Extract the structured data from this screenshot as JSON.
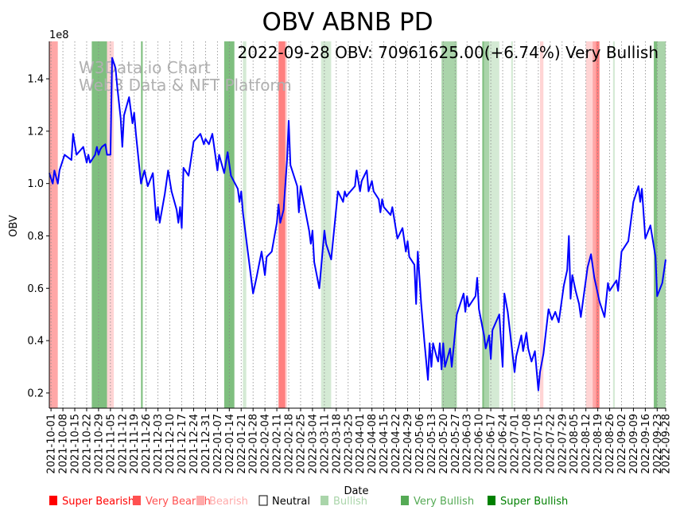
{
  "chart_data": {
    "type": "line",
    "title": "OBV ABNB PD",
    "annotation": "2022-09-28 OBV: 70961625.00(+6.74%) Very Bullish",
    "watermark": [
      "W3Data.io Chart",
      "Web3 Data & NFT Platform"
    ],
    "xlabel": "Date",
    "ylabel": "OBV",
    "y_offset_label": "1e8",
    "y_scale": 100000000,
    "ylim": [
      0.142,
      1.543
    ],
    "xlim": [
      "2021-09-30",
      "2022-09-28"
    ],
    "grid": "x-dotted",
    "yticks": [
      {
        "value": 0.2,
        "label": "0.2"
      },
      {
        "value": 0.4,
        "label": "0.4"
      },
      {
        "value": 0.6,
        "label": "0.6"
      },
      {
        "value": 0.8,
        "label": "0.8"
      },
      {
        "value": 1.0,
        "label": "1.0"
      },
      {
        "value": 1.2,
        "label": "1.2"
      },
      {
        "value": 1.4,
        "label": "1.4"
      }
    ],
    "xticks": [
      "2021-10-01",
      "2021-10-08",
      "2021-10-15",
      "2021-10-22",
      "2021-10-29",
      "2021-11-05",
      "2021-11-12",
      "2021-11-19",
      "2021-11-26",
      "2021-12-03",
      "2021-12-10",
      "2021-12-17",
      "2021-12-24",
      "2021-12-31",
      "2022-01-07",
      "2022-01-14",
      "2022-01-21",
      "2022-01-28",
      "2022-02-04",
      "2022-02-11",
      "2022-02-18",
      "2022-02-25",
      "2022-03-04",
      "2022-03-11",
      "2022-03-18",
      "2022-03-25",
      "2022-04-01",
      "2022-04-08",
      "2022-04-15",
      "2022-04-22",
      "2022-04-29",
      "2022-05-06",
      "2022-05-13",
      "2022-05-20",
      "2022-05-27",
      "2022-06-03",
      "2022-06-10",
      "2022-06-17",
      "2022-06-24",
      "2022-07-01",
      "2022-07-08",
      "2022-07-15",
      "2022-07-22",
      "2022-07-29",
      "2022-08-05",
      "2022-08-12",
      "2022-08-19",
      "2022-08-26",
      "2022-09-02",
      "2022-09-09",
      "2022-09-16",
      "2022-09-23",
      "2022-09-28"
    ],
    "series": [
      {
        "name": "OBV",
        "color": "#0000ff",
        "points": [
          [
            "2021-09-30",
            1.04
          ],
          [
            "2021-10-02",
            1.0
          ],
          [
            "2021-10-03",
            1.05
          ],
          [
            "2021-10-05",
            1.0
          ],
          [
            "2021-10-06",
            1.05
          ],
          [
            "2021-10-09",
            1.11
          ],
          [
            "2021-10-13",
            1.09
          ],
          [
            "2021-10-14",
            1.19
          ],
          [
            "2021-10-16",
            1.11
          ],
          [
            "2021-10-20",
            1.14
          ],
          [
            "2021-10-22",
            1.08
          ],
          [
            "2021-10-23",
            1.11
          ],
          [
            "2021-10-24",
            1.08
          ],
          [
            "2021-10-27",
            1.11
          ],
          [
            "2021-10-28",
            1.14
          ],
          [
            "2021-10-29",
            1.11
          ],
          [
            "2021-10-30",
            1.13
          ],
          [
            "2021-10-31",
            1.14
          ],
          [
            "2021-11-02",
            1.15
          ],
          [
            "2021-11-03",
            1.11
          ],
          [
            "2021-11-05",
            1.11
          ],
          [
            "2021-11-06",
            1.48
          ],
          [
            "2021-11-08",
            1.44
          ],
          [
            "2021-11-09",
            1.37
          ],
          [
            "2021-11-11",
            1.25
          ],
          [
            "2021-11-12",
            1.14
          ],
          [
            "2021-11-13",
            1.26
          ],
          [
            "2021-11-16",
            1.33
          ],
          [
            "2021-11-18",
            1.23
          ],
          [
            "2021-11-19",
            1.27
          ],
          [
            "2021-11-20",
            1.19
          ],
          [
            "2021-11-23",
            1.0
          ],
          [
            "2021-11-25",
            1.05
          ],
          [
            "2021-11-27",
            0.99
          ],
          [
            "2021-11-30",
            1.04
          ],
          [
            "2021-12-02",
            0.86
          ],
          [
            "2021-12-03",
            0.91
          ],
          [
            "2021-12-04",
            0.85
          ],
          [
            "2021-12-07",
            0.96
          ],
          [
            "2021-12-09",
            1.05
          ],
          [
            "2021-12-11",
            0.97
          ],
          [
            "2021-12-14",
            0.9
          ],
          [
            "2021-12-15",
            0.85
          ],
          [
            "2021-12-16",
            0.91
          ],
          [
            "2021-12-17",
            0.83
          ],
          [
            "2021-12-18",
            1.06
          ],
          [
            "2021-12-21",
            1.03
          ],
          [
            "2021-12-24",
            1.16
          ],
          [
            "2021-12-28",
            1.19
          ],
          [
            "2021-12-30",
            1.15
          ],
          [
            "2021-12-31",
            1.17
          ],
          [
            "2022-01-02",
            1.15
          ],
          [
            "2022-01-04",
            1.19
          ],
          [
            "2022-01-07",
            1.05
          ],
          [
            "2022-01-08",
            1.11
          ],
          [
            "2022-01-11",
            1.04
          ],
          [
            "2022-01-13",
            1.12
          ],
          [
            "2022-01-15",
            1.03
          ],
          [
            "2022-01-19",
            0.98
          ],
          [
            "2022-01-20",
            0.93
          ],
          [
            "2022-01-21",
            0.97
          ],
          [
            "2022-01-22",
            0.89
          ],
          [
            "2022-01-28",
            0.58
          ],
          [
            "2022-01-30",
            0.64
          ],
          [
            "2022-02-02",
            0.74
          ],
          [
            "2022-02-04",
            0.65
          ],
          [
            "2022-02-05",
            0.72
          ],
          [
            "2022-02-08",
            0.74
          ],
          [
            "2022-02-11",
            0.85
          ],
          [
            "2022-02-12",
            0.92
          ],
          [
            "2022-02-13",
            0.85
          ],
          [
            "2022-02-15",
            0.9
          ],
          [
            "2022-02-17",
            1.09
          ],
          [
            "2022-02-18",
            1.24
          ],
          [
            "2022-02-19",
            1.07
          ],
          [
            "2022-02-23",
            0.99
          ],
          [
            "2022-02-24",
            0.89
          ],
          [
            "2022-02-25",
            0.99
          ],
          [
            "2022-03-02",
            0.82
          ],
          [
            "2022-03-03",
            0.77
          ],
          [
            "2022-03-04",
            0.82
          ],
          [
            "2022-03-05",
            0.7
          ],
          [
            "2022-03-08",
            0.6
          ],
          [
            "2022-03-11",
            0.82
          ],
          [
            "2022-03-12",
            0.77
          ],
          [
            "2022-03-15",
            0.71
          ],
          [
            "2022-03-19",
            0.97
          ],
          [
            "2022-03-22",
            0.93
          ],
          [
            "2022-03-23",
            0.97
          ],
          [
            "2022-03-24",
            0.95
          ],
          [
            "2022-03-25",
            0.96
          ],
          [
            "2022-03-29",
            0.99
          ],
          [
            "2022-03-30",
            1.05
          ],
          [
            "2022-04-01",
            0.97
          ],
          [
            "2022-04-02",
            1.01
          ],
          [
            "2022-04-05",
            1.05
          ],
          [
            "2022-04-06",
            0.97
          ],
          [
            "2022-04-08",
            1.01
          ],
          [
            "2022-04-09",
            0.97
          ],
          [
            "2022-04-12",
            0.94
          ],
          [
            "2022-04-13",
            0.89
          ],
          [
            "2022-04-14",
            0.94
          ],
          [
            "2022-04-15",
            0.91
          ],
          [
            "2022-04-19",
            0.88
          ],
          [
            "2022-04-20",
            0.91
          ],
          [
            "2022-04-23",
            0.79
          ],
          [
            "2022-04-26",
            0.83
          ],
          [
            "2022-04-28",
            0.74
          ],
          [
            "2022-04-29",
            0.78
          ],
          [
            "2022-04-30",
            0.72
          ],
          [
            "2022-05-03",
            0.69
          ],
          [
            "2022-05-04",
            0.54
          ],
          [
            "2022-05-05",
            0.74
          ],
          [
            "2022-05-07",
            0.54
          ],
          [
            "2022-05-09",
            0.39
          ],
          [
            "2022-05-11",
            0.25
          ],
          [
            "2022-05-12",
            0.39
          ],
          [
            "2022-05-13",
            0.3
          ],
          [
            "2022-05-14",
            0.39
          ],
          [
            "2022-05-16",
            0.34
          ],
          [
            "2022-05-17",
            0.32
          ],
          [
            "2022-05-18",
            0.39
          ],
          [
            "2022-05-19",
            0.29
          ],
          [
            "2022-05-20",
            0.39
          ],
          [
            "2022-05-21",
            0.3
          ],
          [
            "2022-05-24",
            0.37
          ],
          [
            "2022-05-25",
            0.3
          ],
          [
            "2022-05-28",
            0.5
          ],
          [
            "2022-06-01",
            0.58
          ],
          [
            "2022-06-02",
            0.51
          ],
          [
            "2022-06-03",
            0.57
          ],
          [
            "2022-06-04",
            0.53
          ],
          [
            "2022-06-08",
            0.57
          ],
          [
            "2022-06-09",
            0.64
          ],
          [
            "2022-06-10",
            0.52
          ],
          [
            "2022-06-13",
            0.42
          ],
          [
            "2022-06-14",
            0.37
          ],
          [
            "2022-06-16",
            0.42
          ],
          [
            "2022-06-17",
            0.33
          ],
          [
            "2022-06-18",
            0.44
          ],
          [
            "2022-06-22",
            0.5
          ],
          [
            "2022-06-24",
            0.3
          ],
          [
            "2022-06-25",
            0.58
          ],
          [
            "2022-06-27",
            0.51
          ],
          [
            "2022-07-01",
            0.28
          ],
          [
            "2022-07-02",
            0.34
          ],
          [
            "2022-07-05",
            0.42
          ],
          [
            "2022-07-06",
            0.36
          ],
          [
            "2022-07-08",
            0.43
          ],
          [
            "2022-07-09",
            0.37
          ],
          [
            "2022-07-11",
            0.32
          ],
          [
            "2022-07-13",
            0.36
          ],
          [
            "2022-07-15",
            0.21
          ],
          [
            "2022-07-16",
            0.28
          ],
          [
            "2022-07-18",
            0.35
          ],
          [
            "2022-07-21",
            0.52
          ],
          [
            "2022-07-23",
            0.48
          ],
          [
            "2022-07-25",
            0.51
          ],
          [
            "2022-07-27",
            0.47
          ],
          [
            "2022-07-30",
            0.61
          ],
          [
            "2022-08-01",
            0.67
          ],
          [
            "2022-08-02",
            0.8
          ],
          [
            "2022-08-03",
            0.56
          ],
          [
            "2022-08-04",
            0.65
          ],
          [
            "2022-08-06",
            0.59
          ],
          [
            "2022-08-08",
            0.54
          ],
          [
            "2022-08-09",
            0.49
          ],
          [
            "2022-08-13",
            0.68
          ],
          [
            "2022-08-15",
            0.73
          ],
          [
            "2022-08-17",
            0.64
          ],
          [
            "2022-08-20",
            0.55
          ],
          [
            "2022-08-23",
            0.49
          ],
          [
            "2022-08-25",
            0.62
          ],
          [
            "2022-08-26",
            0.59
          ],
          [
            "2022-08-30",
            0.63
          ],
          [
            "2022-08-31",
            0.59
          ],
          [
            "2022-09-02",
            0.74
          ],
          [
            "2022-09-06",
            0.78
          ],
          [
            "2022-09-09",
            0.93
          ],
          [
            "2022-09-12",
            0.99
          ],
          [
            "2022-09-13",
            0.93
          ],
          [
            "2022-09-14",
            0.98
          ],
          [
            "2022-09-16",
            0.79
          ],
          [
            "2022-09-19",
            0.84
          ],
          [
            "2022-09-22",
            0.72
          ],
          [
            "2022-09-23",
            0.57
          ],
          [
            "2022-09-26",
            0.62
          ],
          [
            "2022-09-28",
            0.7096
          ]
        ]
      }
    ],
    "sentiment_bands": [
      {
        "start": "2021-09-30",
        "end": "2021-10-05",
        "sentiment": "very_bearish"
      },
      {
        "start": "2021-10-25",
        "end": "2021-11-03",
        "sentiment": "super_bullish"
      },
      {
        "start": "2021-11-03",
        "end": "2021-11-07",
        "sentiment": "bearish"
      },
      {
        "start": "2021-11-23",
        "end": "2021-11-24",
        "sentiment": "super_bullish"
      },
      {
        "start": "2022-01-11",
        "end": "2022-01-17",
        "sentiment": "super_bullish"
      },
      {
        "start": "2022-01-22",
        "end": "2022-01-24",
        "sentiment": "bullish"
      },
      {
        "start": "2022-02-12",
        "end": "2022-02-16",
        "sentiment": "super_bearish"
      },
      {
        "start": "2022-02-16",
        "end": "2022-02-17",
        "sentiment": "bearish"
      },
      {
        "start": "2022-03-09",
        "end": "2022-03-15",
        "sentiment": "bullish"
      },
      {
        "start": "2022-05-19",
        "end": "2022-05-28",
        "sentiment": "very_bullish"
      },
      {
        "start": "2022-06-12",
        "end": "2022-06-13",
        "sentiment": "super_bullish"
      },
      {
        "start": "2022-06-13",
        "end": "2022-06-16",
        "sentiment": "very_bullish"
      },
      {
        "start": "2022-06-16",
        "end": "2022-06-22",
        "sentiment": "bullish"
      },
      {
        "start": "2022-06-29",
        "end": "2022-06-30",
        "sentiment": "bullish"
      },
      {
        "start": "2022-07-16",
        "end": "2022-07-18",
        "sentiment": "bearish"
      },
      {
        "start": "2022-08-12",
        "end": "2022-08-16",
        "sentiment": "bearish"
      },
      {
        "start": "2022-08-16",
        "end": "2022-08-18",
        "sentiment": "very_bearish"
      },
      {
        "start": "2022-08-18",
        "end": "2022-08-20",
        "sentiment": "super_bearish"
      },
      {
        "start": "2022-08-28",
        "end": "2022-08-29",
        "sentiment": "bullish"
      },
      {
        "start": "2022-09-21",
        "end": "2022-09-23",
        "sentiment": "super_bullish"
      },
      {
        "start": "2022-09-23",
        "end": "2022-09-29",
        "sentiment": "very_bullish"
      }
    ],
    "legend": {
      "placement": "bottom",
      "items": [
        {
          "key": "super_bearish",
          "label": "Super Bearish",
          "color": "#ff0000"
        },
        {
          "key": "very_bearish",
          "label": "Very Bearish",
          "color": "#ff5050"
        },
        {
          "key": "bearish",
          "label": "Bearish",
          "color": "#ffaaaa"
        },
        {
          "key": "neutral",
          "label": "Neutral",
          "color": "#ffffff"
        },
        {
          "key": "bullish",
          "label": "Bullish",
          "color": "#aad5aa"
        },
        {
          "key": "very_bullish",
          "label": "Very Bullish",
          "color": "#55aa55"
        },
        {
          "key": "super_bullish",
          "label": "Super Bullish",
          "color": "#008000"
        }
      ]
    }
  }
}
